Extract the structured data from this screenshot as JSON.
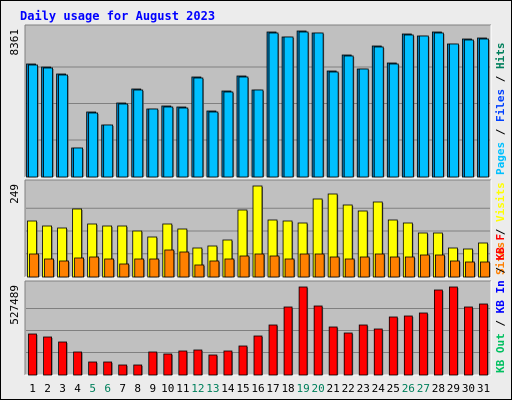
{
  "title": "Daily usage for August 2023",
  "colors": {
    "background": "#ececec",
    "panel": "#c0c0c0",
    "title": "#0000ff",
    "hits": "#00805c",
    "files": "#0040ff",
    "pages": "#00c0ff",
    "visits": "#ffff00",
    "sites": "#ff8000",
    "kbin": "#0000ff",
    "kbout": "#00c060",
    "kbf": "#ff0000",
    "weekend_day": "#00805c",
    "weekday": "#000000"
  },
  "chart_data": [
    {
      "type": "bar",
      "name": "hits-files-pages",
      "categories": [
        "1",
        "2",
        "3",
        "4",
        "5",
        "6",
        "7",
        "8",
        "9",
        "10",
        "11",
        "12",
        "13",
        "14",
        "15",
        "16",
        "17",
        "18",
        "19",
        "20",
        "21",
        "22",
        "23",
        "24",
        "25",
        "26",
        "27",
        "28",
        "29",
        "30",
        "31"
      ],
      "weekend_days": [
        "5",
        "6",
        "12",
        "13",
        "19",
        "20",
        "26",
        "27"
      ],
      "ymax_label": "8361",
      "ymax": 8361,
      "legend": [
        {
          "label": "Hits",
          "color": "#00805c"
        },
        {
          "label": "Files",
          "color": "#0040ff"
        },
        {
          "label": "Pages",
          "color": "#00c0ff"
        }
      ],
      "series": [
        {
          "name": "Hits",
          "values": [
            6480,
            6280,
            5880,
            1680,
            3720,
            3000,
            4240,
            5040,
            3920,
            4040,
            4000,
            5720,
            3760,
            4920,
            5760,
            5000,
            8280,
            8040,
            8361,
            8260,
            6080,
            6960,
            6200,
            7480,
            6520,
            8200,
            8100,
            8300,
            7640,
            7880,
            7960
          ]
        },
        {
          "name": "Pages",
          "values": [
            6440,
            6240,
            5840,
            1640,
            3680,
            2960,
            4200,
            5000,
            3880,
            4000,
            3960,
            5680,
            3720,
            4880,
            5720,
            4960,
            8240,
            8000,
            8320,
            8220,
            6040,
            6920,
            6160,
            7440,
            6480,
            8160,
            8060,
            8260,
            7600,
            7840,
            7920
          ]
        }
      ]
    },
    {
      "type": "bar",
      "name": "visits-sites",
      "ymax_label": "249",
      "ymax": 249,
      "legend": [
        {
          "label": "Visits",
          "color": "#ffff00"
        },
        {
          "label": "Sites",
          "color": "#ff8000"
        }
      ],
      "series": [
        {
          "name": "Visits",
          "values": [
            152,
            140,
            134,
            186,
            146,
            140,
            140,
            126,
            110,
            146,
            132,
            80,
            86,
            100,
            184,
            249,
            156,
            152,
            148,
            214,
            226,
            196,
            180,
            206,
            156,
            148,
            120,
            120,
            80,
            76,
            92
          ]
        },
        {
          "name": "Sites",
          "values": [
            64,
            50,
            44,
            52,
            56,
            50,
            36,
            50,
            48,
            74,
            68,
            32,
            44,
            48,
            58,
            62,
            58,
            48,
            62,
            64,
            56,
            48,
            56,
            62,
            56,
            54,
            60,
            60,
            44,
            42,
            40
          ]
        }
      ]
    },
    {
      "type": "bar",
      "name": "kbytes",
      "ymax_label": "527489",
      "ymax": 527489,
      "legend": [
        {
          "label": "KB F",
          "color": "#ff0000"
        },
        {
          "label": "KB In",
          "color": "#0000ff"
        },
        {
          "label": "KB Out",
          "color": "#00c060"
        }
      ],
      "series": [
        {
          "name": "KB F",
          "values": [
            248000,
            226000,
            200000,
            136000,
            78000,
            78000,
            58000,
            62000,
            140000,
            124000,
            146000,
            150000,
            122000,
            144000,
            174000,
            236000,
            300000,
            408000,
            527489,
            412000,
            288000,
            250000,
            300000,
            276000,
            350000,
            354000,
            372000,
            508000,
            527489,
            410000,
            424000
          ]
        }
      ]
    }
  ]
}
